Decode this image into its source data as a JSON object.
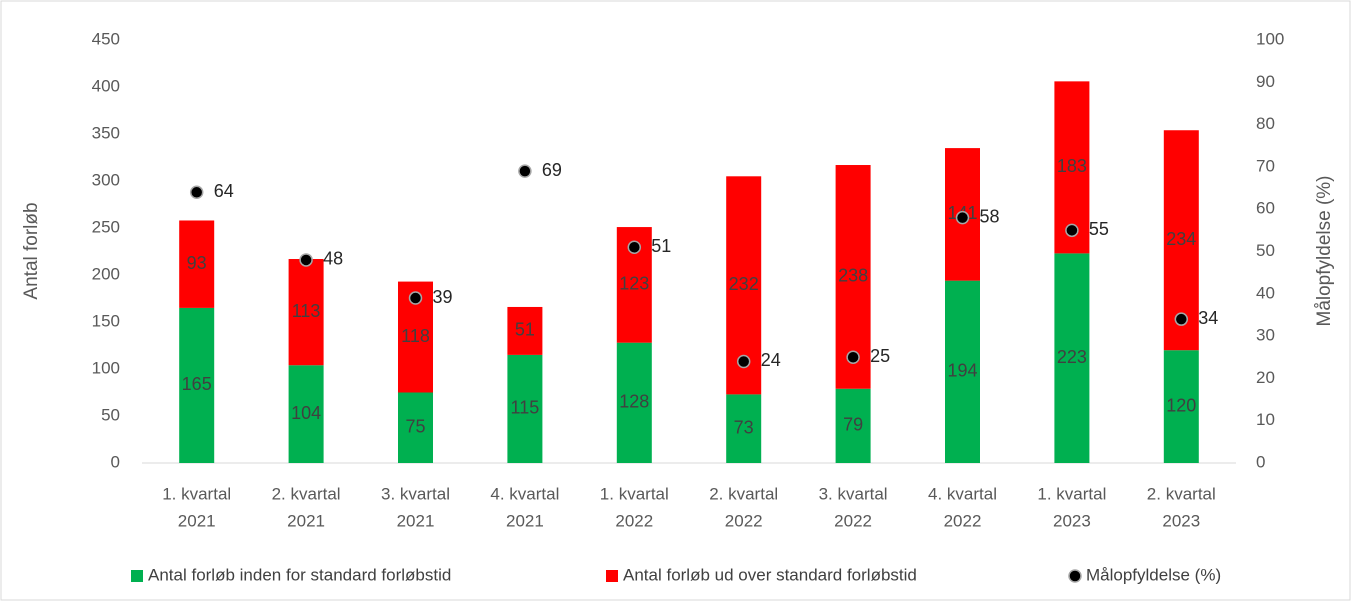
{
  "chart_data": {
    "type": "bar",
    "stacked": true,
    "categories": [
      [
        "1. kvartal",
        "2021"
      ],
      [
        "2. kvartal",
        "2021"
      ],
      [
        "3. kvartal",
        "2021"
      ],
      [
        "4. kvartal",
        "2021"
      ],
      [
        "1. kvartal",
        "2022"
      ],
      [
        "2. kvartal",
        "2022"
      ],
      [
        "3. kvartal",
        "2022"
      ],
      [
        "4. kvartal",
        "2022"
      ],
      [
        "1. kvartal",
        "2023"
      ],
      [
        "2. kvartal",
        "2023"
      ]
    ],
    "series": [
      {
        "name": "Antal forløb inden for standard forløbstid",
        "color": "#00b050",
        "values": [
          165,
          104,
          75,
          115,
          128,
          73,
          79,
          194,
          223,
          120
        ]
      },
      {
        "name": "Antal forløb ud over standard forløbstid",
        "color": "#ff0000",
        "values": [
          93,
          113,
          118,
          51,
          123,
          232,
          238,
          141,
          183,
          234
        ]
      },
      {
        "name": "Målopfyldelse (%)",
        "type": "scatter",
        "axis": "y2",
        "color": "#000000",
        "values": [
          64,
          48,
          39,
          69,
          51,
          24,
          25,
          58,
          55,
          34
        ]
      }
    ],
    "y_label": "Antal forløb",
    "y2_label": "Målopfyldelse (%)",
    "ylim": [
      0,
      450
    ],
    "yticks": [
      0,
      50,
      100,
      150,
      200,
      250,
      300,
      350,
      400,
      450
    ],
    "y2lim": [
      0,
      100
    ],
    "y2ticks": [
      0,
      10,
      20,
      30,
      40,
      50,
      60,
      70,
      80,
      90,
      100
    ],
    "grid": false,
    "legend": "bottom"
  }
}
